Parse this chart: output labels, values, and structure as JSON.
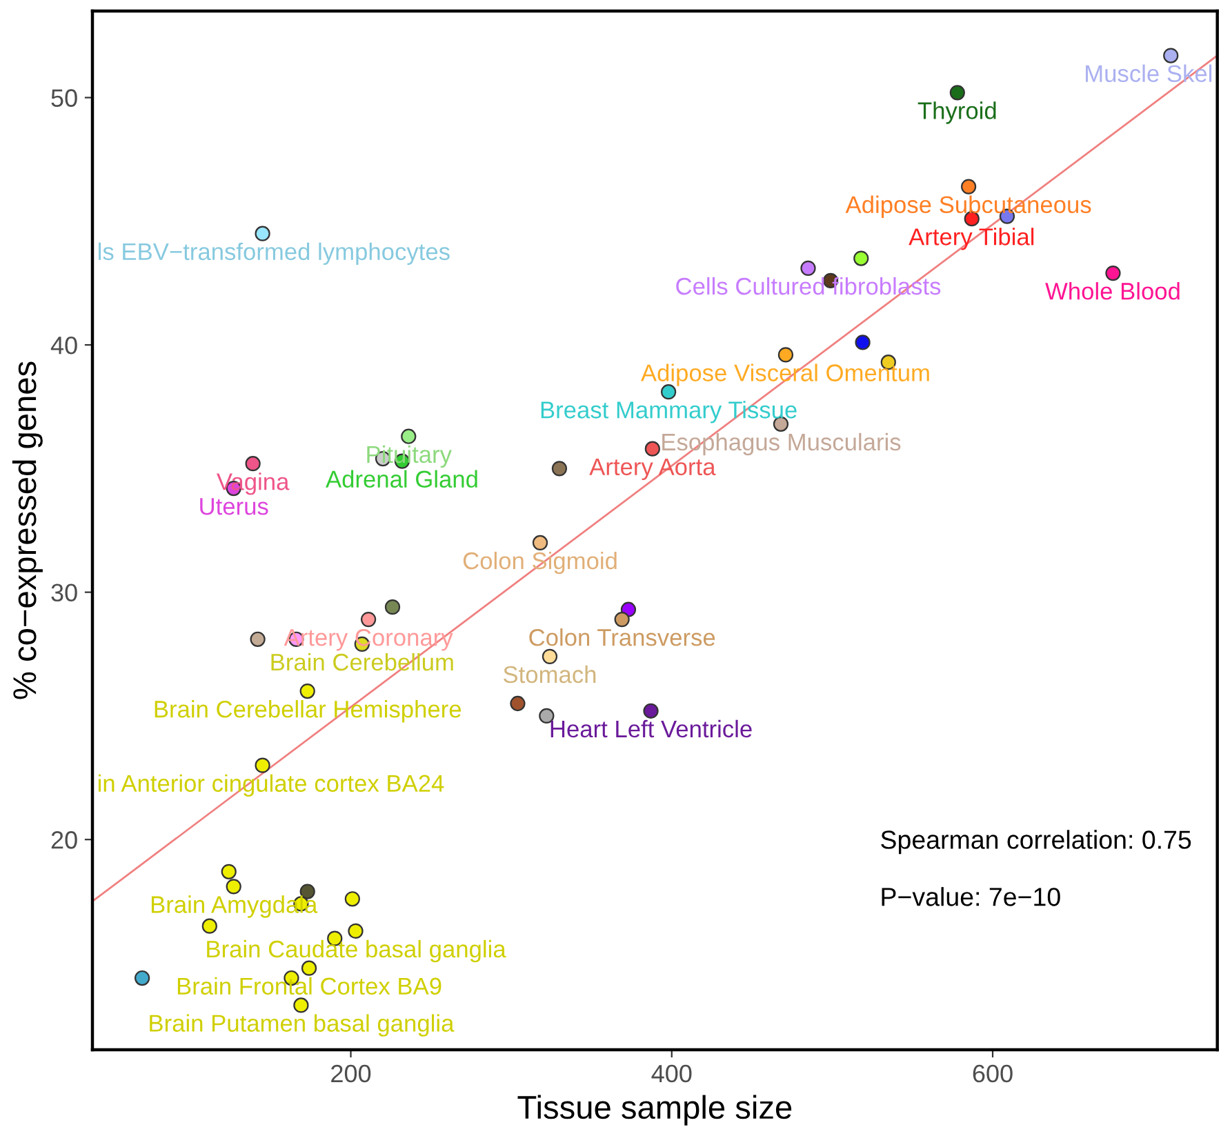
{
  "chart_data": {
    "type": "scatter",
    "xlabel": "Tissue sample size",
    "ylabel": "% co−expressed genes",
    "xlim": [
      39,
      740
    ],
    "ylim": [
      11.5,
      53.5
    ],
    "xticks": [
      200,
      400,
      600
    ],
    "yticks": [
      20,
      30,
      40,
      50
    ],
    "series": [
      {
        "marker": "circle",
        "x": [
          711,
          578,
          585,
          587,
          609,
          675,
          485,
          518,
          499,
          519,
          535,
          471,
          398,
          468,
          388,
          330,
          318,
          373,
          369,
          324,
          304,
          322,
          387,
          145,
          139,
          127,
          236,
          220,
          232,
          142,
          166,
          211,
          226,
          207,
          173,
          145,
          124,
          127,
          173,
          169,
          201,
          112,
          203,
          190,
          174,
          163,
          169,
          70
        ],
        "values": [
          51.7,
          50.2,
          46.4,
          45.1,
          45.2,
          42.9,
          43.1,
          43.5,
          42.6,
          40.1,
          39.3,
          39.6,
          38.1,
          36.8,
          35.8,
          35.0,
          32.0,
          29.3,
          28.9,
          27.4,
          25.5,
          25.0,
          25.2,
          44.5,
          35.2,
          34.2,
          36.3,
          35.4,
          35.3,
          28.1,
          28.1,
          28.9,
          29.4,
          27.9,
          26.0,
          23.0,
          18.7,
          18.1,
          17.9,
          17.4,
          17.6,
          16.5,
          16.3,
          16.0,
          14.8,
          14.4,
          13.3,
          14.4
        ],
        "colors": [
          "#aab0f0",
          "#1a6e1a",
          "#ff7f24",
          "#ff2020",
          "#7777ee",
          "#ff1493",
          "#c77cff",
          "#99ff33",
          "#5c3a1e",
          "#1010ee",
          "#eecc22",
          "#ffaa22",
          "#33cccc",
          "#c4a898",
          "#ee5555",
          "#8b7355",
          "#f0bb80",
          "#9900ff",
          "#cd9b62",
          "#ffdd99",
          "#a0522d",
          "#aaaaaa",
          "#6a1a9a",
          "#99e6ff",
          "#ee5588",
          "#dd44dd",
          "#99ee88",
          "#cccccc",
          "#33cc33",
          "#c4ab96",
          "#ff99ff",
          "#ff9999",
          "#778855",
          "#dddd22",
          "#eeee00",
          "#eeee00",
          "#eeee00",
          "#eeee00",
          "#555533",
          "#eeee00",
          "#eeee00",
          "#eeee00",
          "#eeee00",
          "#eeee00",
          "#eeee00",
          "#eeee00",
          "#eeee00",
          "#44aacc"
        ]
      },
      {
        "type": "line",
        "x": [
          39,
          740
        ],
        "values": [
          17.5,
          51.7
        ],
        "color": "#f08080"
      }
    ],
    "annotations": [
      {
        "text": "Muscle Skel",
        "x": 711,
        "y": 51.7
      },
      {
        "text": "Thyroid",
        "x": 578,
        "y": 50.2
      },
      {
        "text": "Adipose Subcutaneous",
        "x": 585,
        "y": 46.4
      },
      {
        "text": "Artery Tibial",
        "x": 587,
        "y": 45.1
      },
      {
        "text": "Whole Blood",
        "x": 675,
        "y": 42.9
      },
      {
        "text": "Cells Cultured fibroblasts",
        "x": 485,
        "y": 43.1
      },
      {
        "text": "Adipose Visceral Omentum",
        "x": 471,
        "y": 39.6
      },
      {
        "text": "Breast Mammary Tissue",
        "x": 398,
        "y": 38.1
      },
      {
        "text": "Esophagus Muscularis",
        "x": 468,
        "y": 36.8
      },
      {
        "text": "Artery Aorta",
        "x": 388,
        "y": 35.8
      },
      {
        "text": "Colon Sigmoid",
        "x": 318,
        "y": 32.0
      },
      {
        "text": "Colon Transverse",
        "x": 369,
        "y": 28.9
      },
      {
        "text": "Stomach",
        "x": 324,
        "y": 27.4
      },
      {
        "text": "Heart Left Ventricle",
        "x": 387,
        "y": 25.2
      },
      {
        "text": "ls EBV−transformed lymphocytes",
        "x": 145,
        "y": 44.5
      },
      {
        "text": "Vagina",
        "x": 139,
        "y": 35.2
      },
      {
        "text": "Uterus",
        "x": 127,
        "y": 34.2
      },
      {
        "text": "Pituitary",
        "x": 236,
        "y": 36.3
      },
      {
        "text": "Adrenal Gland",
        "x": 232,
        "y": 35.3
      },
      {
        "text": "Artery Coronary",
        "x": 211,
        "y": 28.9
      },
      {
        "text": "Brain Cerebellum",
        "x": 207,
        "y": 27.9
      },
      {
        "text": "Brain Cerebellar Hemisphere",
        "x": 173,
        "y": 26.0
      },
      {
        "text": "in Anterior cingulate cortex BA24",
        "x": 145,
        "y": 23.0
      },
      {
        "text": "Brain Amygdala",
        "x": 127,
        "y": 18.1
      },
      {
        "text": "Brain Caudate basal ganglia",
        "x": 203,
        "y": 16.3
      },
      {
        "text": "Brain Frontal Cortex BA9",
        "x": 174,
        "y": 14.8
      },
      {
        "text": "Brain Putamen basal ganglia",
        "x": 169,
        "y": 13.3
      },
      "Spearman correlation: 0.75",
      "P−value: 7e−10"
    ]
  }
}
